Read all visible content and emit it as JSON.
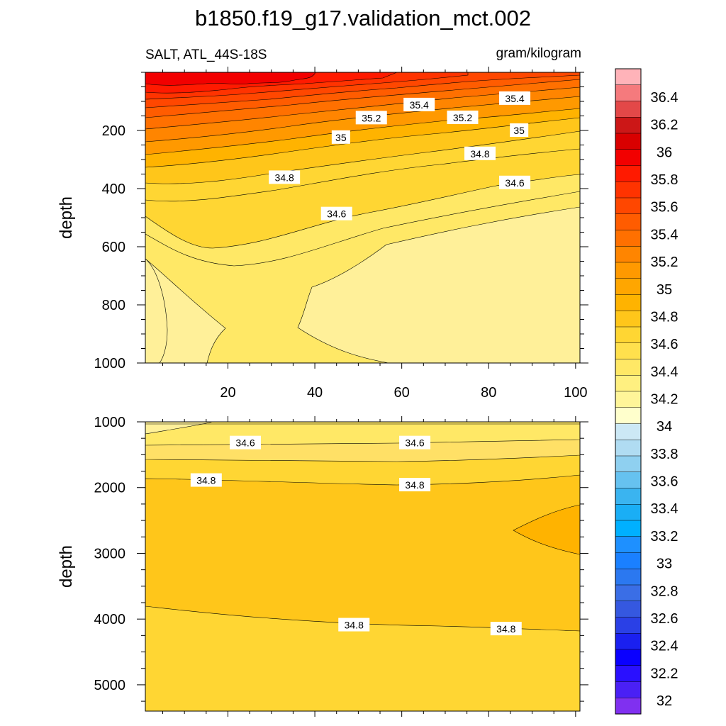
{
  "chart_data": {
    "type": "contour",
    "title": "b1850.f19_g17.validation_mct.002",
    "subtitle_left": "SALT, ATL_44S-18S",
    "subtitle_right": "gram/kilogram",
    "panels": [
      {
        "name": "upper",
        "xlabel": "",
        "ylabel": "depth",
        "xlim": [
          1,
          101
        ],
        "ylim": [
          0,
          1000
        ],
        "y_reversed": true,
        "xticks": [
          20,
          40,
          60,
          80,
          100
        ],
        "yticks": [
          200,
          400,
          600,
          800,
          1000
        ],
        "contour_labels": [
          {
            "text": "35.4",
            "x": 64,
            "y": 112
          },
          {
            "text": "35.4",
            "x": 86,
            "y": 90
          },
          {
            "text": "35.2",
            "x": 53,
            "y": 157
          },
          {
            "text": "35.2",
            "x": 74,
            "y": 156
          },
          {
            "text": "35",
            "x": 46,
            "y": 224
          },
          {
            "text": "35",
            "x": 87,
            "y": 200
          },
          {
            "text": "34.8",
            "x": 33,
            "y": 362
          },
          {
            "text": "34.8",
            "x": 78,
            "y": 280
          },
          {
            "text": "34.6",
            "x": 45,
            "y": 487
          },
          {
            "text": "34.6",
            "x": 86,
            "y": 380
          }
        ]
      },
      {
        "name": "lower",
        "xlabel": "",
        "ylabel": "depth",
        "xlim": [
          1,
          101
        ],
        "ylim": [
          1000,
          5400
        ],
        "y_reversed": true,
        "yticks": [
          1000,
          2000,
          3000,
          4000,
          5000
        ],
        "contour_labels": [
          {
            "text": "34.6",
            "x": 24,
            "y": 1320
          },
          {
            "text": "34.6",
            "x": 63,
            "y": 1320
          },
          {
            "text": "34.8",
            "x": 15,
            "y": 1890
          },
          {
            "text": "34.8",
            "x": 63,
            "y": 1960
          },
          {
            "text": "34.8",
            "x": 49,
            "y": 4090
          },
          {
            "text": "34.8",
            "x": 84,
            "y": 4150
          }
        ]
      }
    ],
    "colorbar": {
      "labels": [
        "36.4",
        "36.2",
        "36",
        "35.8",
        "35.6",
        "35.4",
        "35.2",
        "35",
        "34.8",
        "34.6",
        "34.4",
        "34.2",
        "34",
        "33.8",
        "33.6",
        "33.4",
        "33.2",
        "33",
        "32.8",
        "32.6",
        "32.4",
        "32.2",
        "32"
      ],
      "colors": [
        "#ffb3b9",
        "#f57a7d",
        "#e34848",
        "#cc1717",
        "#d90000",
        "#f20000",
        "#ff1a00",
        "#ff3300",
        "#ff4700",
        "#ff5c00",
        "#ff7000",
        "#ff8500",
        "#ff9900",
        "#ffa600",
        "#ffb300",
        "#ffc61a",
        "#ffd633",
        "#ffe04d",
        "#ffe866",
        "#fff080",
        "#fff599",
        "#ffffcc",
        "#cce8f5",
        "#b0dcf2",
        "#8fd0f0",
        "#66c2f0",
        "#3ab4f0",
        "#1aaef5",
        "#00b0ff",
        "#1e90ff",
        "#1a80ff",
        "#2b78f0",
        "#3a6ee6",
        "#3558e0",
        "#2a40e6",
        "#1a20f0",
        "#0a00ff",
        "#2a10ff",
        "#4a20f5",
        "#8030f0"
      ]
    },
    "upper_fill_bands": [
      {
        "color": "#fff099",
        "name": "lt34.4"
      },
      {
        "color": "#ffe866",
        "name": "34.4-34.6"
      },
      {
        "color": "#ffd633",
        "name": "34.6-34.8"
      },
      {
        "color": "#ffc61a",
        "name": "34.8-35"
      },
      {
        "color": "#ffb300",
        "name": "35-35.1"
      },
      {
        "color": "#ff9900",
        "name": "35.1-35.2"
      },
      {
        "color": "#ff8500",
        "name": "35.2-35.3"
      },
      {
        "color": "#ff7000",
        "name": "35.3-35.4"
      },
      {
        "color": "#ff5c00",
        "name": "35.4-35.5"
      },
      {
        "color": "#ff4700",
        "name": "35.5-35.6"
      },
      {
        "color": "#ff3300",
        "name": "35.6-35.7"
      },
      {
        "color": "#ff1a00",
        "name": "35.7-35.8"
      },
      {
        "color": "#f20000",
        "name": "gt35.8"
      }
    ]
  }
}
